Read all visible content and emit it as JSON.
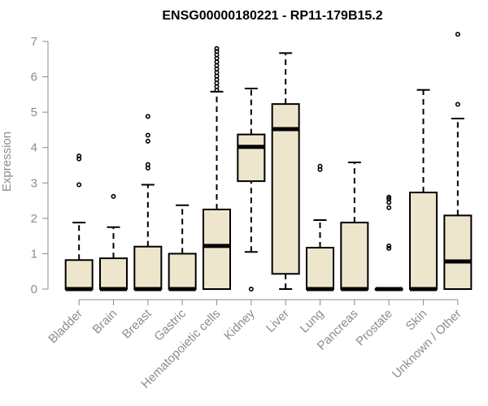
{
  "chart_data": {
    "type": "boxplot",
    "title": "ENSG00000180221 - RP11-179B15.2",
    "xlabel": "",
    "ylabel": "Expression",
    "ylim": [
      0,
      7
    ],
    "yticks": [
      0,
      1,
      2,
      3,
      4,
      5,
      6,
      7
    ],
    "grid": false,
    "categories": [
      "Bladder",
      "Brain",
      "Breast",
      "Gastric",
      "Hematopoietic cells",
      "Kidney",
      "Liver",
      "Lung",
      "Pancreas",
      "Prostate",
      "Skin",
      "Unknown / Other"
    ],
    "boxes": [
      {
        "min": 0,
        "q1": 0,
        "median": 0,
        "q3": 0.82,
        "max": 1.88,
        "outliers": [
          2.95,
          3.68,
          3.76
        ]
      },
      {
        "min": 0,
        "q1": 0,
        "median": 0,
        "q3": 0.87,
        "max": 1.75,
        "outliers": [
          2.62
        ]
      },
      {
        "min": 0,
        "q1": 0,
        "median": 0,
        "q3": 1.2,
        "max": 2.95,
        "outliers": [
          3.42,
          3.52,
          4.18,
          4.35,
          4.88
        ]
      },
      {
        "min": 0,
        "q1": 0,
        "median": 0,
        "q3": 1.0,
        "max": 2.37,
        "outliers": []
      },
      {
        "min": 0,
        "q1": 0,
        "median": 1.22,
        "q3": 2.25,
        "max": 5.58,
        "outliers": [
          5.62,
          5.72,
          5.82,
          5.92,
          6.02,
          6.12,
          6.22,
          6.32,
          6.42,
          6.52,
          6.62,
          6.72,
          6.8
        ]
      },
      {
        "min": 1.05,
        "q1": 3.05,
        "median": 4.02,
        "q3": 4.37,
        "max": 5.67,
        "outliers": [
          0
        ]
      },
      {
        "min": 0,
        "q1": 0.43,
        "median": 4.52,
        "q3": 5.23,
        "max": 6.67,
        "outliers": []
      },
      {
        "min": 0,
        "q1": 0,
        "median": 0,
        "q3": 1.17,
        "max": 1.95,
        "outliers": [
          3.38,
          3.47
        ]
      },
      {
        "min": 0,
        "q1": 0,
        "median": 0,
        "q3": 1.88,
        "max": 3.58,
        "outliers": []
      },
      {
        "min": 0,
        "q1": 0,
        "median": 0,
        "q3": 0,
        "max": 0,
        "outliers": [
          1.15,
          1.22,
          2.3,
          2.45,
          2.55,
          2.6
        ]
      },
      {
        "min": 0,
        "q1": 0,
        "median": 0,
        "q3": 2.73,
        "max": 5.63,
        "outliers": []
      },
      {
        "min": 0,
        "q1": 0,
        "median": 0.78,
        "q3": 2.08,
        "max": 4.82,
        "outliers": [
          5.22,
          7.2
        ]
      }
    ],
    "colors": {
      "box_fill": "#ede6cd",
      "stroke": "#000000",
      "axis": "#8c8c8c"
    }
  }
}
